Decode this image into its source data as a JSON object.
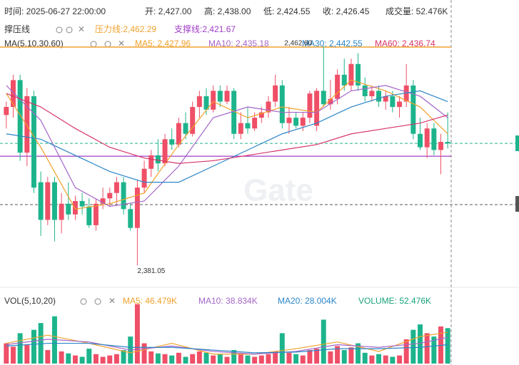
{
  "chart_data": {
    "type": "candlestick",
    "header": [
      "时间: 2025-06-27 22:00:00",
      "开: 2,427.00",
      "高: 2,438.00",
      "低: 2,424.55",
      "收: 2,426.45",
      "成交量: 52.476K"
    ],
    "sr_title": "撑压线",
    "resistance": 2462.29,
    "resistance_label": "压力线:2,462.29",
    "support": 2421.67,
    "support_label": "支撑线:2,421.67",
    "ma_title": "MA(5,10,30,60)",
    "high_label": "2,462.60",
    "high_label_index": 46,
    "low_label": "2,381.05",
    "low_label_index": 19,
    "watermark": "Gate",
    "ylim": [
      2373.7,
      2479.8
    ],
    "up_color": "#ef4f67",
    "down_color": "#1db48c",
    "open": [
      2437,
      2440,
      2450,
      2423,
      2444,
      2412,
      2398,
      2412,
      2398,
      2404,
      2400,
      2405,
      2403,
      2396,
      2404,
      2406,
      2408,
      2412,
      2402,
      2395,
      2410,
      2417,
      2422,
      2419,
      2428,
      2426,
      2434,
      2430,
      2440,
      2444,
      2439,
      2446,
      2442,
      2446,
      2430,
      2434,
      2432,
      2436,
      2438,
      2442,
      2448,
      2434,
      2436,
      2433,
      2436,
      2433,
      2446,
      2441,
      2443,
      2452,
      2448,
      2456,
      2448,
      2444,
      2446,
      2442,
      2444,
      2440,
      2442,
      2448,
      2430,
      2425,
      2432,
      2424,
      2427
    ],
    "high": [
      2442,
      2452,
      2452,
      2447,
      2446,
      2416,
      2414,
      2414,
      2408,
      2412,
      2407,
      2408,
      2406,
      2406,
      2410,
      2410,
      2414,
      2414,
      2404,
      2413,
      2420,
      2424,
      2428,
      2430,
      2432,
      2436,
      2438,
      2442,
      2446,
      2447,
      2448,
      2448,
      2448,
      2447,
      2438,
      2440,
      2438,
      2440,
      2444,
      2452,
      2450,
      2440,
      2438,
      2438,
      2446,
      2447,
      2462.6,
      2450,
      2454,
      2458,
      2458,
      2460,
      2451,
      2448,
      2448,
      2446,
      2446,
      2444,
      2456,
      2450,
      2436,
      2434,
      2434,
      2430,
      2438
    ],
    "low": [
      2432,
      2436,
      2420,
      2418,
      2408,
      2392,
      2396,
      2390,
      2393,
      2398,
      2398,
      2400,
      2395,
      2394,
      2402,
      2403,
      2404,
      2400,
      2394,
      2381.05,
      2408,
      2414,
      2416,
      2418,
      2424,
      2425,
      2428,
      2429,
      2436,
      2437,
      2438,
      2440,
      2441,
      2428,
      2428,
      2430,
      2431,
      2434,
      2436,
      2440,
      2432,
      2430,
      2432,
      2431,
      2434,
      2431,
      2440,
      2439,
      2441,
      2446,
      2446,
      2446,
      2442,
      2442,
      2440,
      2439,
      2438,
      2436,
      2440,
      2428,
      2424,
      2421,
      2422,
      2415,
      2424.55
    ],
    "close": [
      2440,
      2450,
      2423,
      2444,
      2410,
      2398,
      2412,
      2398,
      2404,
      2400,
      2405,
      2403,
      2396,
      2404,
      2406,
      2408,
      2412,
      2402,
      2395,
      2410,
      2417,
      2422,
      2419,
      2428,
      2426,
      2434,
      2430,
      2440,
      2444,
      2439,
      2446,
      2442,
      2446,
      2430,
      2434,
      2432,
      2436,
      2438,
      2442,
      2448,
      2434,
      2436,
      2433,
      2436,
      2445,
      2446,
      2441,
      2443,
      2452,
      2448,
      2456,
      2448,
      2444,
      2446,
      2442,
      2444,
      2440,
      2442,
      2448,
      2430,
      2425,
      2432,
      2424,
      2427,
      2426.45
    ],
    "ma_lines": [
      {
        "name": "MA5: 2,427.96",
        "color": "#f0a12b",
        "x": [
          0,
          5,
          10,
          15,
          20,
          25,
          30,
          35,
          40,
          45,
          50,
          55,
          60,
          64
        ],
        "values": [
          2445,
          2425,
          2402,
          2404,
          2408,
          2426,
          2442,
          2436,
          2440,
          2438,
          2450,
          2446,
          2440,
          2430
        ]
      },
      {
        "name": "MA10: 2,435.18",
        "color": "#a466c9",
        "x": [
          0,
          5,
          10,
          15,
          20,
          25,
          30,
          35,
          40,
          45,
          50,
          55,
          60,
          64
        ],
        "values": [
          2448,
          2435,
          2410,
          2403,
          2405,
          2418,
          2436,
          2440,
          2438,
          2438,
          2446,
          2448,
          2444,
          2436
        ]
      },
      {
        "name": "MA30: 2,442.55",
        "color": "#2b86c8",
        "x": [
          0,
          5,
          10,
          15,
          20,
          25,
          30,
          35,
          40,
          45,
          50,
          55,
          60,
          64
        ],
        "values": [
          2430,
          2428,
          2422,
          2416,
          2412,
          2412,
          2418,
          2424,
          2430,
          2434,
          2440,
          2444,
          2446,
          2442
        ]
      },
      {
        "name": "MA60: 2,436.74",
        "color": "#d6336c",
        "x": [
          0,
          5,
          10,
          15,
          20,
          25,
          30,
          35,
          40,
          45,
          50,
          55,
          60,
          64
        ],
        "values": [
          2445,
          2440,
          2432,
          2425,
          2421,
          2419,
          2420,
          2422,
          2424,
          2426,
          2430,
          2432,
          2434,
          2437
        ]
      }
    ],
    "price_line": 2426.45,
    "vol_title": "VOL(5,10,20)",
    "vol_ylim": [
      0,
      95
    ],
    "volume": [
      30,
      25,
      45,
      28,
      50,
      60,
      20,
      70,
      18,
      15,
      12,
      10,
      22,
      14,
      10,
      12,
      14,
      20,
      40,
      88,
      30,
      18,
      15,
      14,
      12,
      16,
      10,
      14,
      18,
      16,
      12,
      14,
      10,
      20,
      14,
      12,
      10,
      12,
      14,
      18,
      45,
      16,
      14,
      12,
      20,
      22,
      65,
      18,
      26,
      20,
      24,
      30,
      16,
      12,
      14,
      12,
      10,
      12,
      36,
      50,
      58,
      45,
      40,
      55,
      52.476
    ],
    "vol_lines": [
      {
        "name": "MA5: 46.479K",
        "color": "#f0a12b",
        "x": [
          0,
          6,
          12,
          18,
          24,
          30,
          36,
          42,
          48,
          54,
          60,
          64
        ],
        "values": [
          30,
          42,
          30,
          16,
          30,
          14,
          14,
          22,
          32,
          18,
          40,
          46.479
        ]
      },
      {
        "name": "MA10: 38.834K",
        "color": "#a466c9",
        "x": [
          0,
          6,
          12,
          18,
          24,
          30,
          36,
          42,
          48,
          54,
          60,
          64
        ],
        "values": [
          28,
          36,
          32,
          20,
          26,
          18,
          14,
          18,
          28,
          24,
          30,
          38.834
        ]
      },
      {
        "name": "MA20: 28.004K",
        "color": "#2b86c8",
        "x": [
          0,
          6,
          12,
          18,
          24,
          30,
          36,
          42,
          48,
          54,
          60,
          64
        ],
        "values": [
          26,
          30,
          30,
          24,
          24,
          20,
          16,
          17,
          22,
          22,
          24,
          28.004
        ]
      }
    ],
    "volume_label": "VOLUME: 52.476K"
  }
}
